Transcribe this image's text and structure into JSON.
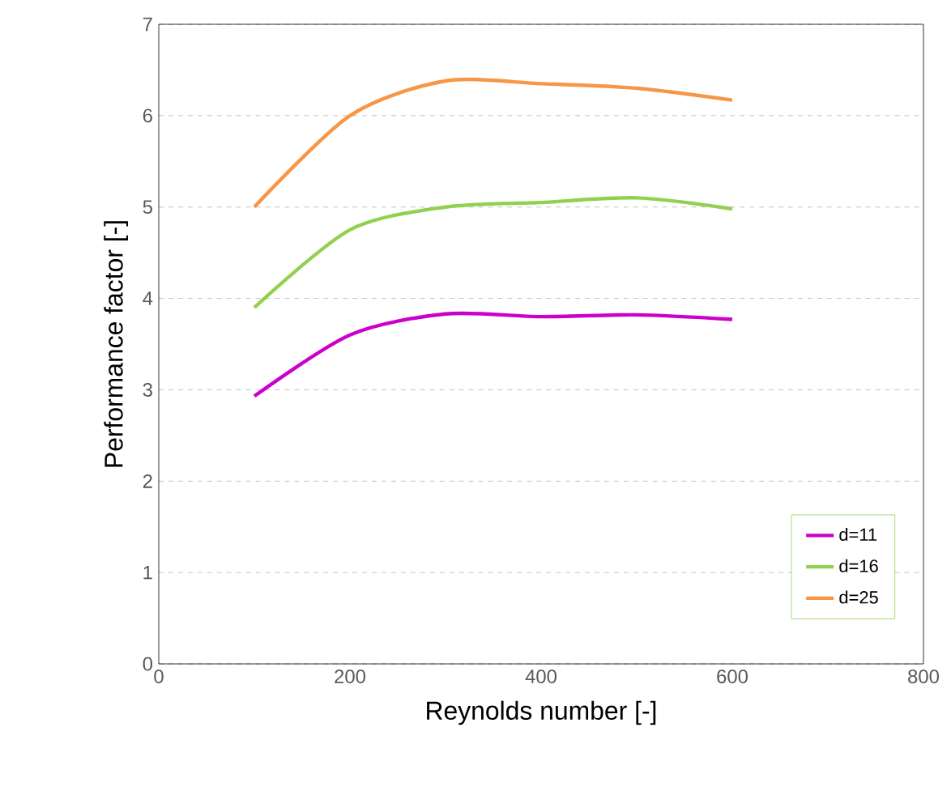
{
  "chart_data": {
    "type": "line",
    "xlabel": "Reynolds number [-]",
    "ylabel": "Performance factor [-]",
    "x": [
      100,
      200,
      300,
      400,
      500,
      600
    ],
    "series": [
      {
        "name": "d=11",
        "color": "#cc00cc",
        "values": [
          2.93,
          3.6,
          3.83,
          3.8,
          3.82,
          3.77
        ]
      },
      {
        "name": "d=16",
        "color": "#92d050",
        "values": [
          3.9,
          4.75,
          5.0,
          5.05,
          5.1,
          4.98
        ]
      },
      {
        "name": "d=25",
        "color": "#f79646",
        "values": [
          5.0,
          6.0,
          6.38,
          6.35,
          6.3,
          6.17
        ]
      }
    ],
    "xlim": [
      0,
      800
    ],
    "xticks": [
      0,
      200,
      400,
      600,
      800
    ],
    "ylim": [
      0,
      7
    ],
    "yticks": [
      0,
      1,
      2,
      3,
      4,
      5,
      6,
      7
    ],
    "grid": "y",
    "legend": "bottom right",
    "marker": "none",
    "line_style": "solid"
  }
}
